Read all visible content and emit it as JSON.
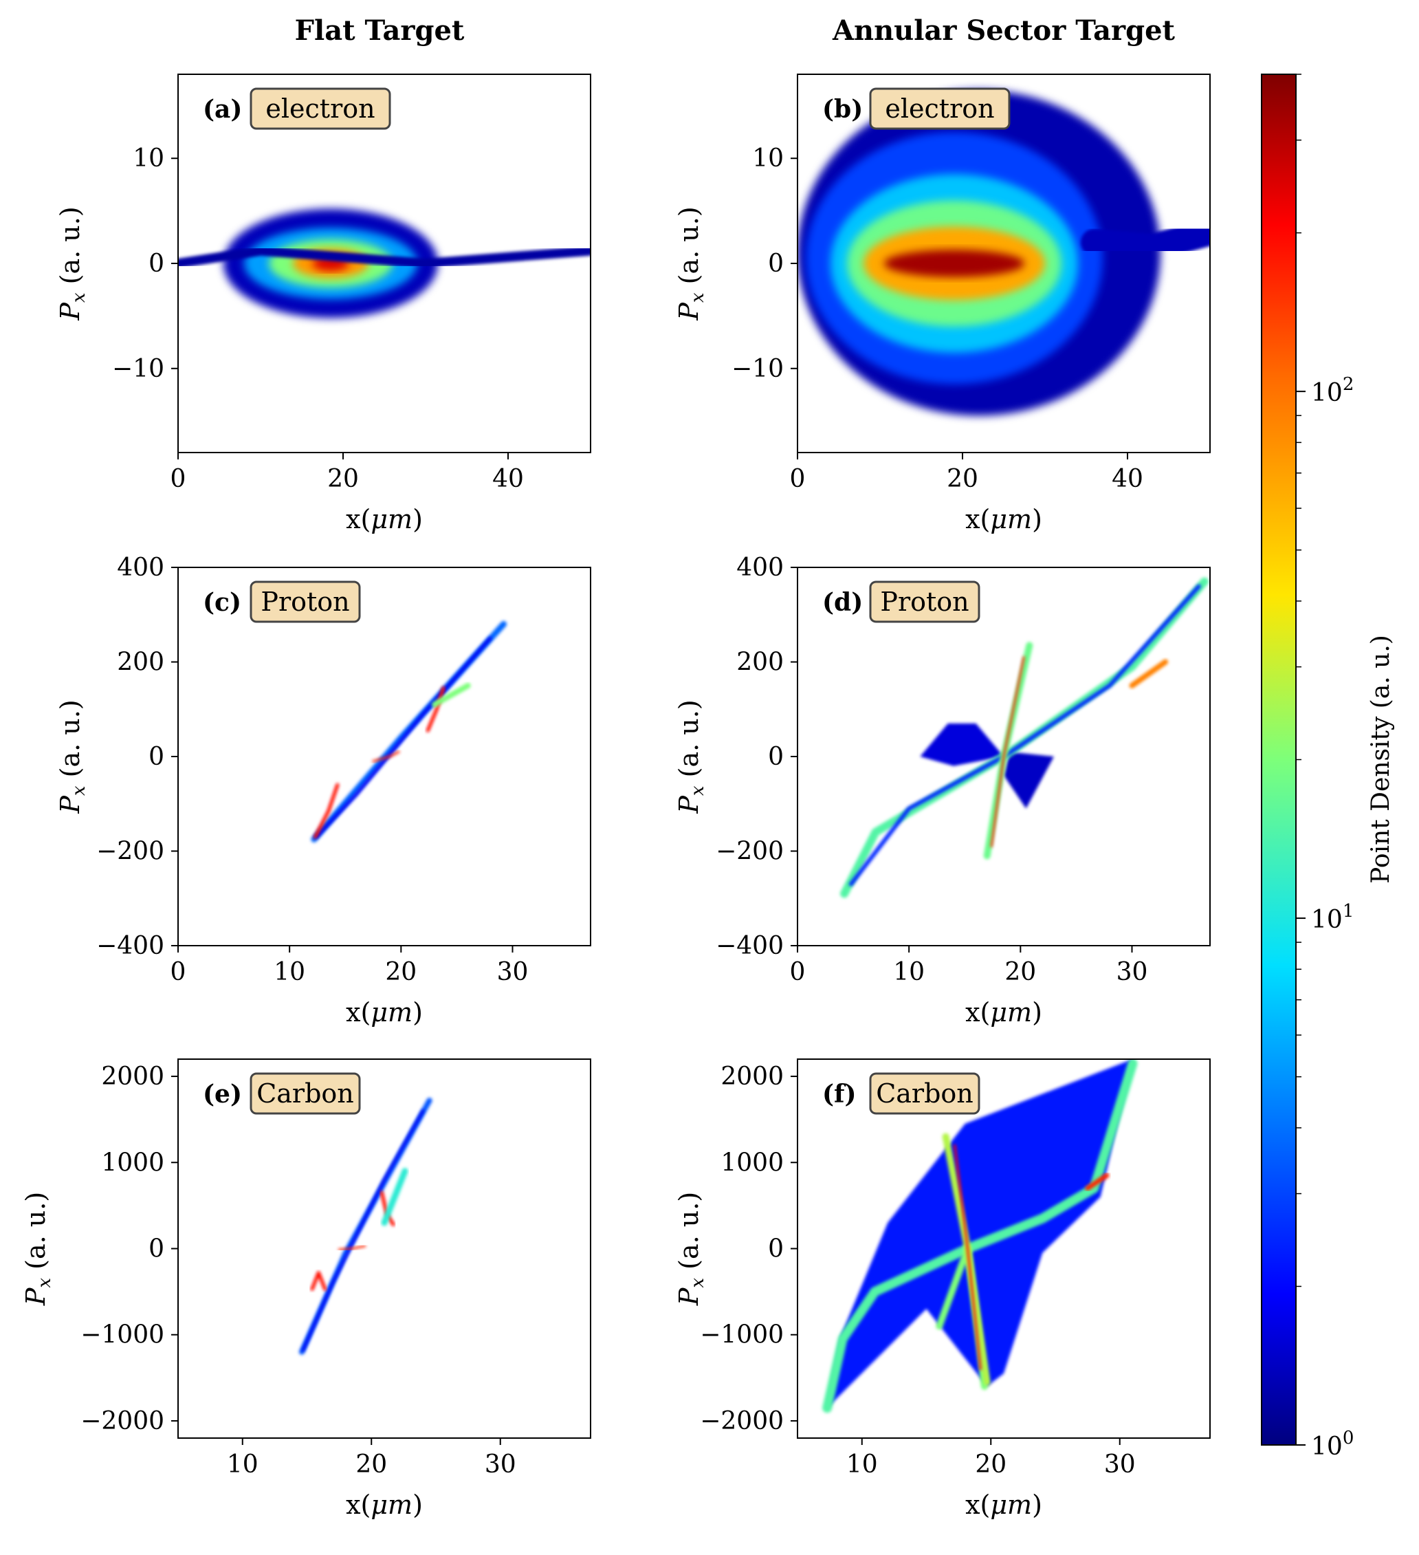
{
  "figure": {
    "column_titles": [
      "Flat Target",
      "Annular Sector Target"
    ]
  },
  "colorbar": {
    "label": "Point Density (a. u.)",
    "scale": "log",
    "range": [
      1,
      400
    ],
    "colormap": "jet",
    "ticks": [
      {
        "base": "10",
        "exp": "0",
        "value": 1
      },
      {
        "base": "10",
        "exp": "1",
        "value": 10
      },
      {
        "base": "10",
        "exp": "2",
        "value": 100
      }
    ]
  },
  "chart_data": [
    {
      "type": "heatmap",
      "id": "a",
      "letter": "(a)",
      "species": "electron",
      "xlabel_main": "x(",
      "xlabel_unit": "μm",
      "xlabel_end": ")",
      "ylabel_main": "P",
      "ylabel_sub": "x",
      "ylabel_rest": " (a. u.)",
      "xlim": [
        0,
        50
      ],
      "ylim": [
        -18,
        18
      ],
      "xticks": [
        {
          "v": 0,
          "label": "0"
        },
        {
          "v": 20,
          "label": "20"
        },
        {
          "v": 40,
          "label": "40"
        }
      ],
      "yticks": [
        {
          "v": 10,
          "label": "10"
        },
        {
          "v": 0,
          "label": "0"
        },
        {
          "v": -10,
          "label": "−10"
        }
      ],
      "blobs": [
        {
          "kind": "ellipse",
          "cx": 18.5,
          "cy": 0,
          "rx": 13,
          "ry": 5.2,
          "level": 0.05
        },
        {
          "kind": "ellipse",
          "cx": 18.5,
          "cy": 0,
          "rx": 10.5,
          "ry": 3.4,
          "level": 0.28
        },
        {
          "kind": "ellipse",
          "cx": 18.5,
          "cy": 0,
          "rx": 7.5,
          "ry": 2.3,
          "level": 0.5
        },
        {
          "kind": "ellipse",
          "cx": 18.5,
          "cy": 0,
          "rx": 4.6,
          "ry": 1.4,
          "level": 0.72
        },
        {
          "kind": "ellipse",
          "cx": 18.5,
          "cy": 0,
          "rx": 2.2,
          "ry": 0.7,
          "level": 0.92
        }
      ],
      "lines": [
        {
          "pts": [
            [
              0,
              0
            ],
            [
              10,
              1.2
            ],
            [
              30,
              0
            ],
            [
              50,
              1.2
            ]
          ],
          "level": 0.03,
          "w": 14
        }
      ]
    },
    {
      "type": "heatmap",
      "id": "b",
      "letter": "(b)",
      "species": "electron",
      "xlabel_main": "x(",
      "xlabel_unit": "μm",
      "xlabel_end": ")",
      "ylabel_main": "P",
      "ylabel_sub": "x",
      "ylabel_rest": " (a. u.)",
      "xlim": [
        0,
        50
      ],
      "ylim": [
        -18,
        18
      ],
      "xticks": [
        {
          "v": 0,
          "label": "0"
        },
        {
          "v": 20,
          "label": "20"
        },
        {
          "v": 40,
          "label": "40"
        }
      ],
      "yticks": [
        {
          "v": 10,
          "label": "10"
        },
        {
          "v": 0,
          "label": "0"
        },
        {
          "v": -10,
          "label": "−10"
        }
      ],
      "blobs": [
        {
          "kind": "ellipse",
          "cx": 22,
          "cy": 1,
          "rx": 22,
          "ry": 15.5,
          "level": 0.04
        },
        {
          "kind": "ellipse",
          "cx": 19,
          "cy": 0.5,
          "rx": 18,
          "ry": 12,
          "level": 0.18
        },
        {
          "kind": "ellipse",
          "cx": 19,
          "cy": 0,
          "rx": 15,
          "ry": 8.5,
          "level": 0.32
        },
        {
          "kind": "ellipse",
          "cx": 19,
          "cy": 0,
          "rx": 13,
          "ry": 6,
          "level": 0.48
        },
        {
          "kind": "ellipse",
          "cx": 19,
          "cy": 0,
          "rx": 11,
          "ry": 3.5,
          "level": 0.7
        },
        {
          "kind": "ellipse",
          "cx": 19,
          "cy": 0,
          "rx": 8.5,
          "ry": 1.3,
          "level": 0.97
        }
      ],
      "lines": [
        {
          "pts": [
            [
              36,
              2
            ],
            [
              43,
              1.5
            ],
            [
              50,
              3
            ]
          ],
          "level": 0.05,
          "w": 40
        }
      ]
    },
    {
      "type": "heatmap",
      "id": "c",
      "letter": "(c)",
      "species": "Proton",
      "xlabel_main": "x(",
      "xlabel_unit": "μm",
      "xlabel_end": ")",
      "ylabel_main": "P",
      "ylabel_sub": "x",
      "ylabel_rest": " (a. u.)",
      "xlim": [
        0,
        37
      ],
      "ylim": [
        -400,
        400
      ],
      "xticks": [
        {
          "v": 0,
          "label": "0"
        },
        {
          "v": 10,
          "label": "10"
        },
        {
          "v": 20,
          "label": "20"
        },
        {
          "v": 30,
          "label": "30"
        }
      ],
      "yticks": [
        {
          "v": 400,
          "label": "400"
        },
        {
          "v": 200,
          "label": "200"
        },
        {
          "v": 0,
          "label": "0"
        },
        {
          "v": -200,
          "label": "−200"
        },
        {
          "v": -400,
          "label": "−400"
        }
      ],
      "blobs": [],
      "lines": [
        {
          "pts": [
            [
              12.2,
              -175
            ],
            [
              20,
              40
            ],
            [
              29.2,
              280
            ]
          ],
          "level": 0.22,
          "w": 9
        },
        {
          "pts": [
            [
              12.4,
              -170
            ],
            [
              16,
              -80
            ],
            [
              22,
              90
            ],
            [
              28,
              250
            ]
          ],
          "level": 0.1,
          "w": 5
        },
        {
          "pts": [
            [
              12.3,
              -170
            ],
            [
              13.5,
              -115
            ],
            [
              14.3,
              -60
            ]
          ],
          "level": 0.88,
          "w": 5
        },
        {
          "pts": [
            [
              22.4,
              55
            ],
            [
              23.2,
              100
            ],
            [
              23.8,
              145
            ]
          ],
          "level": 0.88,
          "w": 5
        },
        {
          "pts": [
            [
              23,
              110
            ],
            [
              26,
              150
            ]
          ],
          "level": 0.5,
          "w": 8
        },
        {
          "pts": [
            [
              17.5,
              -10
            ],
            [
              19,
              0
            ],
            [
              19.8,
              10
            ]
          ],
          "level": 0.85,
          "w": 3
        }
      ]
    },
    {
      "type": "heatmap",
      "id": "d",
      "letter": "(d)",
      "species": "Proton",
      "xlabel_main": "x(",
      "xlabel_unit": "μm",
      "xlabel_end": ")",
      "ylabel_main": "P",
      "ylabel_sub": "x",
      "ylabel_rest": " (a. u.)",
      "xlim": [
        0,
        37
      ],
      "ylim": [
        -400,
        400
      ],
      "xticks": [
        {
          "v": 0,
          "label": "0"
        },
        {
          "v": 10,
          "label": "10"
        },
        {
          "v": 20,
          "label": "20"
        },
        {
          "v": 30,
          "label": "30"
        }
      ],
      "yticks": [
        {
          "v": 400,
          "label": "400"
        },
        {
          "v": 200,
          "label": "200"
        },
        {
          "v": 0,
          "label": "0"
        },
        {
          "v": -200,
          "label": "−200"
        },
        {
          "v": -400,
          "label": "−400"
        }
      ],
      "blobs": [
        {
          "kind": "poly",
          "pts": [
            [
              13.5,
              70
            ],
            [
              16,
              70
            ],
            [
              18.5,
              0
            ],
            [
              14,
              -20
            ],
            [
              11,
              0
            ]
          ],
          "level": 0.08
        },
        {
          "kind": "poly",
          "pts": [
            [
              19,
              10
            ],
            [
              23,
              0
            ],
            [
              20.5,
              -110
            ],
            [
              18.5,
              -40
            ]
          ],
          "level": 0.06
        }
      ],
      "lines": [
        {
          "pts": [
            [
              4.2,
              -290
            ],
            [
              7,
              -160
            ],
            [
              18.5,
              0
            ],
            [
              30,
              190
            ],
            [
              36.5,
              370
            ]
          ],
          "level": 0.45,
          "w": 12
        },
        {
          "pts": [
            [
              4.8,
              -270
            ],
            [
              10,
              -110
            ],
            [
              18.5,
              0
            ],
            [
              28,
              150
            ],
            [
              36,
              360
            ]
          ],
          "level": 0.15,
          "w": 6
        },
        {
          "pts": [
            [
              17,
              -210
            ],
            [
              18.5,
              0
            ],
            [
              20.8,
              235
            ]
          ],
          "level": 0.48,
          "w": 10
        },
        {
          "pts": [
            [
              17.4,
              -190
            ],
            [
              18.5,
              0
            ],
            [
              20.3,
              210
            ]
          ],
          "level": 0.85,
          "w": 3
        },
        {
          "pts": [
            [
              12,
              2
            ],
            [
              25,
              2
            ]
          ],
          "level": 0.9,
          "w": 3
        },
        {
          "pts": [
            [
              30,
              150
            ],
            [
              33,
              200
            ]
          ],
          "level": 0.75,
          "w": 8
        }
      ]
    },
    {
      "type": "heatmap",
      "id": "e",
      "letter": "(e)",
      "species": "Carbon",
      "xlabel_main": "x(",
      "xlabel_unit": "μm",
      "xlabel_end": ")",
      "ylabel_main": "P",
      "ylabel_sub": "x",
      "ylabel_rest": " (a. u.)",
      "xlim": [
        5,
        37
      ],
      "ylim": [
        -2200,
        2200
      ],
      "xticks": [
        {
          "v": 10,
          "label": "10"
        },
        {
          "v": 20,
          "label": "20"
        },
        {
          "v": 30,
          "label": "30"
        }
      ],
      "yticks": [
        {
          "v": 2000,
          "label": "2000"
        },
        {
          "v": 1000,
          "label": "1000"
        },
        {
          "v": 0,
          "label": "0"
        },
        {
          "v": -1000,
          "label": "−1000"
        },
        {
          "v": -2000,
          "label": "−2000"
        }
      ],
      "blobs": [],
      "lines": [
        {
          "pts": [
            [
              14.6,
              -1200
            ],
            [
              18,
              -50
            ],
            [
              24.5,
              1720
            ]
          ],
          "level": 0.2,
          "w": 8
        },
        {
          "pts": [
            [
              14.7,
              -1180
            ],
            [
              17,
              -400
            ],
            [
              21,
              800
            ],
            [
              24,
              1600
            ]
          ],
          "level": 0.1,
          "w": 4
        },
        {
          "pts": [
            [
              15.4,
              -470
            ],
            [
              15.9,
              -280
            ],
            [
              16.4,
              -470
            ]
          ],
          "level": 0.88,
          "w": 5
        },
        {
          "pts": [
            [
              20.8,
              650
            ],
            [
              21.2,
              400
            ],
            [
              21.7,
              280
            ]
          ],
          "level": 0.88,
          "w": 5
        },
        {
          "pts": [
            [
              21,
              300
            ],
            [
              22.6,
              900
            ]
          ],
          "level": 0.4,
          "w": 9
        },
        {
          "pts": [
            [
              17.5,
              -10
            ],
            [
              18.5,
              0
            ],
            [
              19.5,
              30
            ]
          ],
          "level": 0.85,
          "w": 3
        }
      ]
    },
    {
      "type": "heatmap",
      "id": "f",
      "letter": "(f)",
      "species": "Carbon",
      "xlabel_main": "x(",
      "xlabel_unit": "μm",
      "xlabel_end": ")",
      "ylabel_main": "P",
      "ylabel_sub": "x",
      "ylabel_rest": " (a. u.)",
      "xlim": [
        5,
        37
      ],
      "ylim": [
        -2200,
        2200
      ],
      "xticks": [
        {
          "v": 10,
          "label": "10"
        },
        {
          "v": 20,
          "label": "20"
        },
        {
          "v": 30,
          "label": "30"
        }
      ],
      "yticks": [
        {
          "v": 2000,
          "label": "2000"
        },
        {
          "v": 1000,
          "label": "1000"
        },
        {
          "v": 0,
          "label": "0"
        },
        {
          "v": -1000,
          "label": "−1000"
        },
        {
          "v": -2000,
          "label": "−2000"
        }
      ],
      "blobs": [
        {
          "kind": "poly",
          "pts": [
            [
              7.3,
              -1850
            ],
            [
              8.4,
              -1000
            ],
            [
              12,
              300
            ],
            [
              18,
              1450
            ],
            [
              31,
              2200
            ],
            [
              28.5,
              600
            ],
            [
              24,
              -50
            ],
            [
              21,
              -1450
            ],
            [
              19.7,
              -1600
            ],
            [
              15,
              -700
            ]
          ],
          "level": 0.13
        }
      ],
      "lines": [
        {
          "pts": [
            [
              7.3,
              -1850
            ],
            [
              8.5,
              -1050
            ],
            [
              11,
              -500
            ],
            [
              18.2,
              0
            ],
            [
              24,
              350
            ],
            [
              28,
              700
            ],
            [
              31,
              2150
            ]
          ],
          "level": 0.45,
          "w": 14
        },
        {
          "pts": [
            [
              16,
              -900
            ],
            [
              18.2,
              0
            ],
            [
              19.5,
              -1600
            ]
          ],
          "level": 0.5,
          "w": 10
        },
        {
          "pts": [
            [
              16.5,
              1300
            ],
            [
              18.2,
              0
            ],
            [
              19.7,
              -1550
            ]
          ],
          "level": 0.55,
          "w": 10
        },
        {
          "pts": [
            [
              17.2,
              1200
            ],
            [
              18.2,
              0
            ],
            [
              19.2,
              -1400
            ]
          ],
          "level": 0.88,
          "w": 3
        },
        {
          "pts": [
            [
              12,
              0
            ],
            [
              24.5,
              0
            ]
          ],
          "level": 0.9,
          "w": 3
        },
        {
          "pts": [
            [
              27.5,
              700
            ],
            [
              29,
              850
            ]
          ],
          "level": 0.85,
          "w": 7
        }
      ]
    }
  ]
}
